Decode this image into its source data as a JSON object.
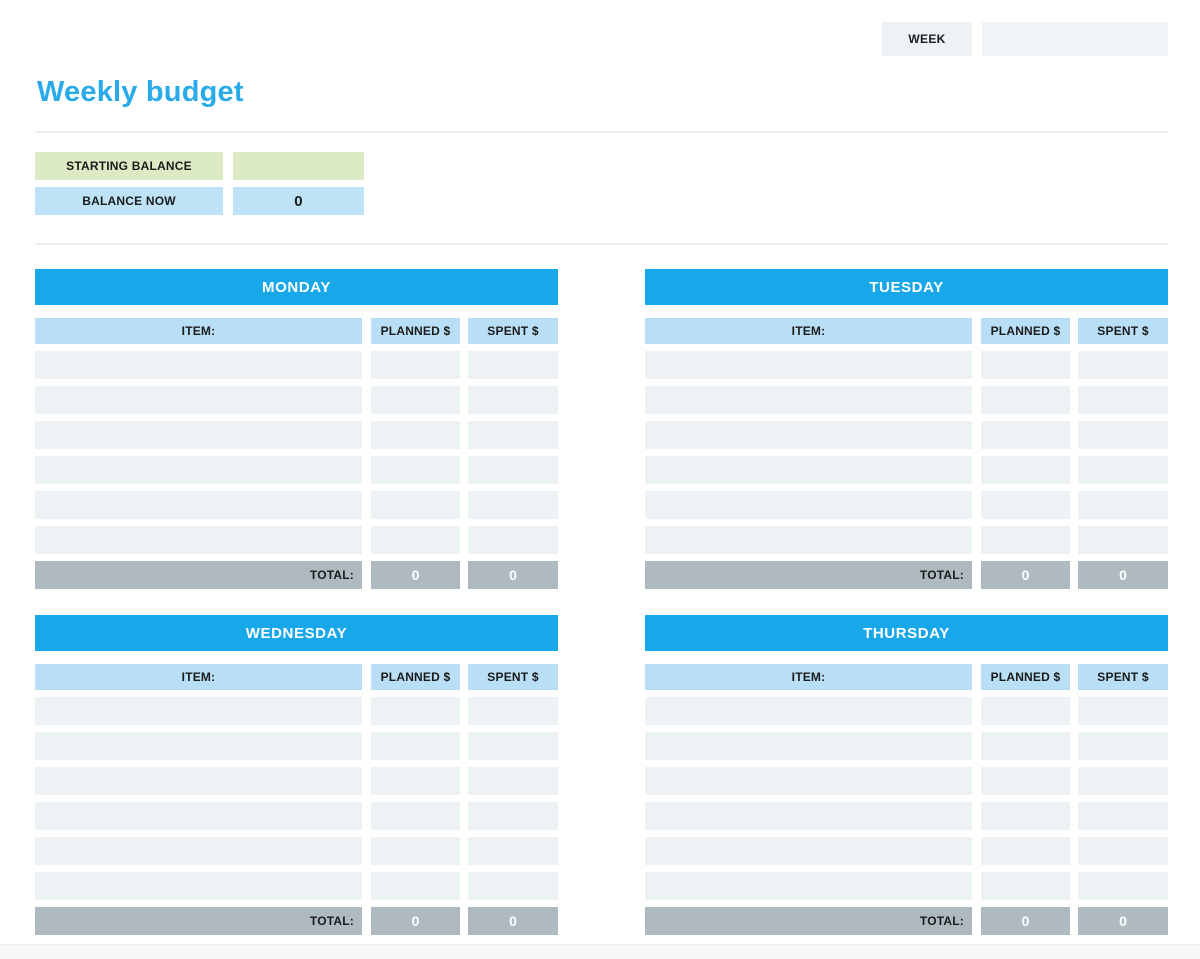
{
  "page_title": "Weekly budget",
  "header": {
    "week_label": "WEEK",
    "week_value": ""
  },
  "balance": {
    "starting_label": "STARTING BALANCE",
    "starting_value": "",
    "now_label": "BALANCE NOW",
    "now_value": "0"
  },
  "columns": {
    "item": "ITEM:",
    "planned": "PLANNED $",
    "spent": "SPENT $"
  },
  "total_label": "TOTAL:",
  "days": [
    {
      "title": "MONDAY",
      "rows": [
        {
          "item": "",
          "planned": "",
          "spent": ""
        },
        {
          "item": "",
          "planned": "",
          "spent": ""
        },
        {
          "item": "",
          "planned": "",
          "spent": ""
        },
        {
          "item": "",
          "planned": "",
          "spent": ""
        },
        {
          "item": "",
          "planned": "",
          "spent": ""
        },
        {
          "item": "",
          "planned": "",
          "spent": ""
        }
      ],
      "totals": {
        "planned": "0",
        "spent": "0"
      }
    },
    {
      "title": "TUESDAY",
      "rows": [
        {
          "item": "",
          "planned": "",
          "spent": ""
        },
        {
          "item": "",
          "planned": "",
          "spent": ""
        },
        {
          "item": "",
          "planned": "",
          "spent": ""
        },
        {
          "item": "",
          "planned": "",
          "spent": ""
        },
        {
          "item": "",
          "planned": "",
          "spent": ""
        },
        {
          "item": "",
          "planned": "",
          "spent": ""
        }
      ],
      "totals": {
        "planned": "0",
        "spent": "0"
      }
    },
    {
      "title": "WEDNESDAY",
      "rows": [
        {
          "item": "",
          "planned": "",
          "spent": ""
        },
        {
          "item": "",
          "planned": "",
          "spent": ""
        },
        {
          "item": "",
          "planned": "",
          "spent": ""
        },
        {
          "item": "",
          "planned": "",
          "spent": ""
        },
        {
          "item": "",
          "planned": "",
          "spent": ""
        },
        {
          "item": "",
          "planned": "",
          "spent": ""
        }
      ],
      "totals": {
        "planned": "0",
        "spent": "0"
      }
    },
    {
      "title": "THURSDAY",
      "rows": [
        {
          "item": "",
          "planned": "",
          "spent": ""
        },
        {
          "item": "",
          "planned": "",
          "spent": ""
        },
        {
          "item": "",
          "planned": "",
          "spent": ""
        },
        {
          "item": "",
          "planned": "",
          "spent": ""
        },
        {
          "item": "",
          "planned": "",
          "spent": ""
        },
        {
          "item": "",
          "planned": "",
          "spent": ""
        }
      ],
      "totals": {
        "planned": "0",
        "spent": "0"
      }
    }
  ],
  "colors": {
    "title_blue": "#29aae9",
    "day_header_blue": "#18a7e9",
    "column_header_blue": "#b9dff6",
    "row_cell_gray": "#edf2f5",
    "total_gray": "#aeb9c0",
    "starting_green": "#dcebc3",
    "balance_blue": "#bee3f7",
    "week_box_gray": "#eef2f5"
  }
}
